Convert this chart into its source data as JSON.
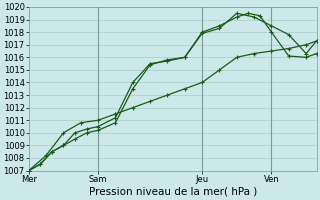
{
  "title": "",
  "xlabel": "Pression niveau de la mer( hPa )",
  "ylabel": "",
  "ylim": [
    1007,
    1020
  ],
  "yticks": [
    1007,
    1008,
    1009,
    1010,
    1011,
    1012,
    1013,
    1014,
    1015,
    1016,
    1017,
    1018,
    1019,
    1020
  ],
  "bg_color": "#cce8e8",
  "grid_color": "#aacccc",
  "line_color": "#1a5c1a",
  "vline_color": "#7a9a9a",
  "xtick_labels": [
    "Mer",
    "Sam",
    "Jeu",
    "Ven"
  ],
  "xtick_positions": [
    0.0,
    2.0,
    5.0,
    7.0
  ],
  "xlim": [
    0,
    8.3
  ],
  "line1_x": [
    0.0,
    0.33,
    0.67,
    1.0,
    1.33,
    1.67,
    2.0,
    2.5,
    3.0,
    3.5,
    4.0,
    4.5,
    5.0,
    5.5,
    6.0,
    6.5,
    7.0,
    7.5,
    8.0,
    8.3
  ],
  "line1_y": [
    1007.0,
    1007.5,
    1008.5,
    1009.0,
    1009.5,
    1010.0,
    1010.2,
    1010.8,
    1013.5,
    1015.4,
    1015.8,
    1016.0,
    1017.9,
    1018.3,
    1019.5,
    1019.2,
    1018.5,
    1017.8,
    1016.3,
    1017.3
  ],
  "line2_x": [
    0.0,
    0.33,
    0.67,
    1.0,
    1.33,
    1.67,
    2.0,
    2.5,
    3.0,
    3.5,
    4.0,
    4.5,
    5.0,
    5.5,
    6.0,
    6.33,
    6.67,
    7.0,
    7.5,
    8.0,
    8.3
  ],
  "line2_y": [
    1007.0,
    1007.5,
    1008.5,
    1009.0,
    1010.0,
    1010.3,
    1010.5,
    1011.2,
    1014.0,
    1015.5,
    1015.7,
    1016.0,
    1018.0,
    1018.5,
    1019.2,
    1019.5,
    1019.3,
    1018.0,
    1016.1,
    1016.0,
    1016.3
  ],
  "line3_x": [
    0.0,
    0.5,
    1.0,
    1.5,
    2.0,
    2.5,
    3.0,
    3.5,
    4.0,
    4.5,
    5.0,
    5.5,
    6.0,
    6.5,
    7.0,
    7.5,
    8.0,
    8.3
  ],
  "line3_y": [
    1007.0,
    1008.2,
    1010.0,
    1010.8,
    1011.0,
    1011.5,
    1012.0,
    1012.5,
    1013.0,
    1013.5,
    1014.0,
    1015.0,
    1016.0,
    1016.3,
    1016.5,
    1016.7,
    1017.0,
    1017.3
  ],
  "vline_positions": [
    2.0,
    5.0,
    7.0
  ],
  "marker": "+",
  "markersize": 3,
  "linewidth": 0.9,
  "font_size_xlabel": 7.5,
  "font_size_tick": 6
}
